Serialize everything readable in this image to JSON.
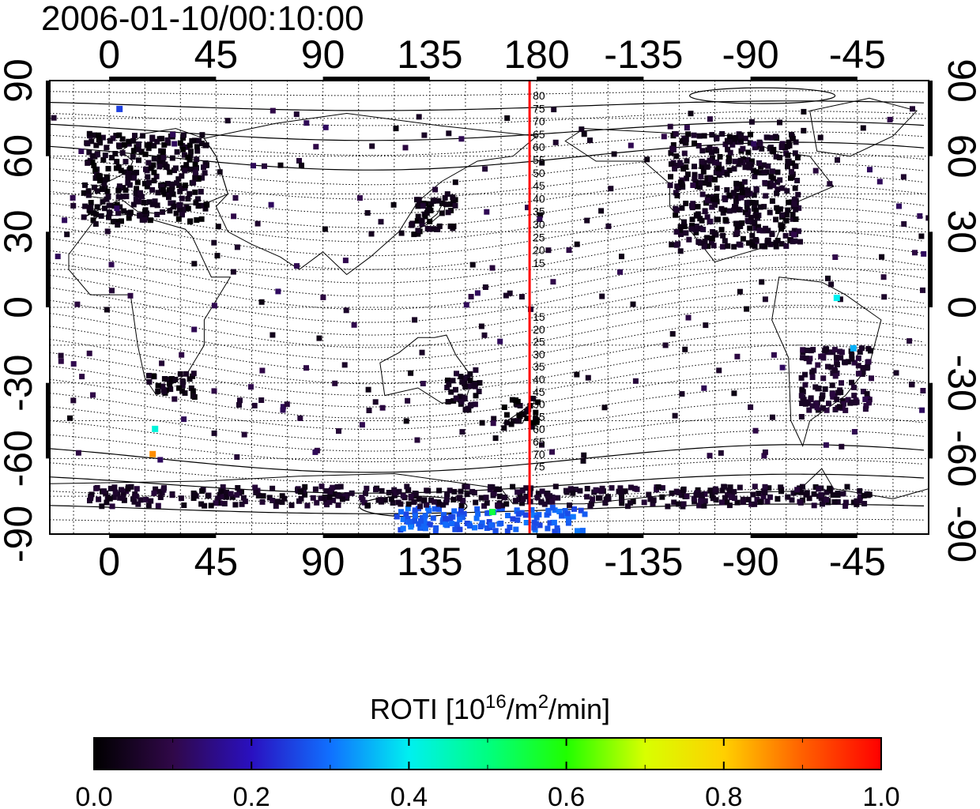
{
  "title": "2006-01-10/00:10:00",
  "colors": {
    "terminator": "#ff0000",
    "grid": "#000000",
    "frame": "#000000",
    "cell": "#2a0d33"
  },
  "map": {
    "projection": "equirectangular",
    "lon_range": [
      -25,
      345
    ],
    "lat_range": [
      -90,
      90
    ],
    "lon_ticks": [
      {
        "value": 0,
        "label": "0"
      },
      {
        "value": 45,
        "label": "45"
      },
      {
        "value": 90,
        "label": "90"
      },
      {
        "value": 135,
        "label": "135"
      },
      {
        "value": 180,
        "label": "180"
      },
      {
        "value": 225,
        "label": "-135"
      },
      {
        "value": 270,
        "label": "-90"
      },
      {
        "value": 315,
        "label": "-45"
      }
    ],
    "lat_ticks": [
      {
        "value": 90,
        "label": "90"
      },
      {
        "value": 60,
        "label": "60"
      },
      {
        "value": 30,
        "label": "30"
      },
      {
        "value": 0,
        "label": "0"
      },
      {
        "value": -30,
        "label": "-30"
      },
      {
        "value": -60,
        "label": "-60"
      },
      {
        "value": -90,
        "label": "-90"
      }
    ],
    "terminator_lon": 177,
    "contour_labels_north": [
      "80",
      "75",
      "70",
      "65",
      "60",
      "55",
      "50",
      "45",
      "40",
      "35",
      "30",
      "25",
      "20",
      "15"
    ],
    "contour_labels_south": [
      "15",
      "20",
      "25",
      "30",
      "35",
      "40",
      "45",
      "50",
      "55",
      "60",
      "65",
      "70",
      "75"
    ],
    "roti_regions": [
      {
        "name": "europe",
        "lon": [
          -12,
          40
        ],
        "lat": [
          35,
          70
        ],
        "roti": 0.03
      },
      {
        "name": "north-america",
        "lon": [
          235,
          290
        ],
        "lat": [
          25,
          70
        ],
        "roti": 0.04
      },
      {
        "name": "japan",
        "lon": [
          125,
          145
        ],
        "lat": [
          30,
          45
        ],
        "roti": 0.03
      },
      {
        "name": "south-africa",
        "lon": [
          15,
          35
        ],
        "lat": [
          -35,
          -25
        ],
        "roti": 0.03
      },
      {
        "name": "south-america",
        "lon": [
          290,
          320
        ],
        "lat": [
          -40,
          -15
        ],
        "roti": 0.06
      },
      {
        "name": "new-zealand",
        "lon": [
          165,
          180
        ],
        "lat": [
          -47,
          -35
        ],
        "roti": 0.02
      },
      {
        "name": "australia-east",
        "lon": [
          140,
          155
        ],
        "lat": [
          -40,
          -25
        ],
        "roti": 0.04
      },
      {
        "name": "antarctic-high",
        "lon": [
          120,
          200
        ],
        "lat": [
          -88,
          -78
        ],
        "roti": 0.28
      },
      {
        "name": "antarctic-coast",
        "lon": [
          -10,
          320
        ],
        "lat": [
          -78,
          -70
        ],
        "roti": 0.05
      }
    ],
    "roti_points": [
      {
        "lon": 3,
        "lat": 80,
        "roti": 0.25
      },
      {
        "lon": 18,
        "lat": -47,
        "roti": 0.42
      },
      {
        "lon": 17,
        "lat": -57,
        "roti": 0.86
      },
      {
        "lon": 305,
        "lat": 5,
        "roti": 0.4
      },
      {
        "lon": 312,
        "lat": -15,
        "roti": 0.35
      },
      {
        "lon": 160,
        "lat": -80,
        "roti": 0.55
      }
    ]
  },
  "colorbar": {
    "title_main": "ROTI  [10",
    "title_sup1": "16",
    "title_mid": "/m",
    "title_sup2": "2",
    "title_end": "/min]",
    "min": 0.0,
    "max": 1.0,
    "ticks": [
      {
        "value": 0.0,
        "label": "0.0"
      },
      {
        "value": 0.2,
        "label": "0.2"
      },
      {
        "value": 0.4,
        "label": "0.4"
      },
      {
        "value": 0.6,
        "label": "0.6"
      },
      {
        "value": 0.8,
        "label": "0.8"
      },
      {
        "value": 1.0,
        "label": "1.0"
      }
    ],
    "stops": [
      {
        "offset": 0.0,
        "color": "#000000"
      },
      {
        "offset": 0.1,
        "color": "#300848"
      },
      {
        "offset": 0.2,
        "color": "#2a10c0"
      },
      {
        "offset": 0.3,
        "color": "#1070ff"
      },
      {
        "offset": 0.4,
        "color": "#00f0f0"
      },
      {
        "offset": 0.5,
        "color": "#00ff80"
      },
      {
        "offset": 0.6,
        "color": "#20ff00"
      },
      {
        "offset": 0.7,
        "color": "#d8ff00"
      },
      {
        "offset": 0.8,
        "color": "#ffd000"
      },
      {
        "offset": 0.9,
        "color": "#ff6000"
      },
      {
        "offset": 1.0,
        "color": "#ff0000"
      }
    ]
  }
}
